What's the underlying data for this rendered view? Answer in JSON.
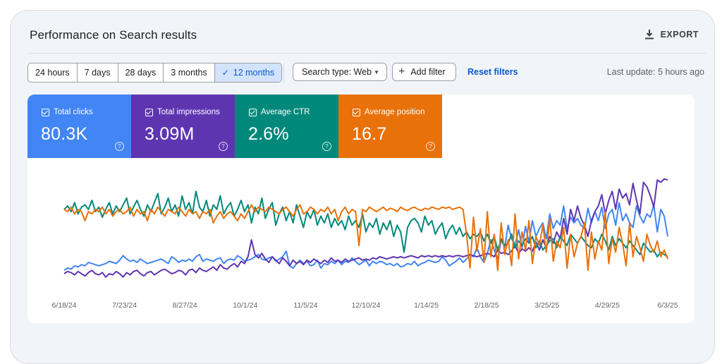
{
  "header": {
    "title": "Performance on Search results",
    "export_label": "EXPORT"
  },
  "toolbar": {
    "ranges": [
      "24 hours",
      "7 days",
      "28 days",
      "3 months",
      "12 months"
    ],
    "active_range": "12 months",
    "search_type_label": "Search type: Web",
    "add_filter_label": "Add filter",
    "reset_label": "Reset filters",
    "last_update": "Last update: 5 hours ago"
  },
  "metrics": [
    {
      "label": "Total clicks",
      "value": "80.3K",
      "color": "#4285f4",
      "checked": true
    },
    {
      "label": "Total impressions",
      "value": "3.09M",
      "color": "#5e35b1",
      "checked": true
    },
    {
      "label": "Average CTR",
      "value": "2.6%",
      "color": "#00897b",
      "checked": true
    },
    {
      "label": "Average position",
      "value": "16.7",
      "color": "#e8710a",
      "checked": true
    }
  ],
  "chart_data": {
    "type": "line",
    "x_ticks": [
      "6/18/24",
      "7/23/24",
      "8/27/24",
      "10/1/24",
      "11/5/24",
      "12/10/24",
      "1/14/25",
      "2/18/25",
      "3/25/25",
      "4/29/25",
      "6/3/25"
    ],
    "y_axis": "hidden",
    "grid": false,
    "normalized_scale": [
      0,
      100
    ],
    "series": [
      {
        "name": "Total clicks",
        "color": "#4285f4",
        "values": [
          18,
          20,
          19,
          22,
          21,
          23,
          22,
          25,
          24,
          23,
          22,
          23,
          24,
          26,
          25,
          24,
          27,
          31,
          28,
          26,
          27,
          25,
          28,
          26,
          24,
          25,
          26,
          27,
          28,
          26,
          24,
          30,
          28,
          25,
          27,
          26,
          28,
          26,
          30,
          32,
          26,
          28,
          27,
          26,
          28,
          29,
          24,
          27,
          28,
          27,
          31,
          29,
          26,
          27,
          28,
          30,
          32,
          28,
          27,
          29,
          30,
          26,
          28,
          30,
          35,
          22,
          20,
          24,
          27,
          24,
          26,
          22,
          23,
          27,
          20,
          24,
          23,
          26,
          24,
          27,
          23,
          26,
          25,
          29,
          26,
          23,
          25,
          27,
          22,
          26,
          24,
          26,
          25,
          23,
          24,
          22,
          24,
          21,
          22,
          24,
          23,
          26,
          22,
          24,
          25,
          27,
          26,
          25,
          26,
          30,
          27,
          22,
          24,
          26,
          29,
          25,
          28,
          32,
          30,
          38,
          30,
          25,
          33,
          45,
          36,
          28,
          45,
          38,
          58,
          46,
          40,
          54,
          38,
          57,
          43,
          62,
          48,
          55,
          60,
          46,
          68,
          55,
          62,
          58,
          75,
          55,
          65,
          60,
          64,
          58,
          55,
          73,
          60,
          70,
          62,
          74,
          55,
          68,
          72,
          58,
          78,
          62,
          68,
          60,
          56,
          75,
          66,
          60,
          68,
          65,
          76,
          52,
          72,
          66,
          48
        ]
      },
      {
        "name": "Total impressions",
        "color": "#5e35b1",
        "values": [
          15,
          17,
          16,
          14,
          17,
          15,
          13,
          16,
          18,
          15,
          14,
          16,
          12,
          15,
          14,
          17,
          15,
          12,
          16,
          14,
          17,
          18,
          15,
          13,
          16,
          17,
          14,
          16,
          18,
          19,
          17,
          15,
          16,
          18,
          17,
          14,
          18,
          19,
          16,
          20,
          18,
          17,
          19,
          21,
          18,
          23,
          20,
          19,
          22,
          24,
          21,
          26,
          24,
          30,
          45,
          32,
          29,
          33,
          28,
          25,
          30,
          27,
          24,
          29,
          26,
          22,
          27,
          24,
          26,
          23,
          27,
          25,
          28,
          26,
          24,
          27,
          25,
          29,
          26,
          27,
          25,
          28,
          26,
          27,
          28,
          29,
          27,
          28,
          27,
          29,
          28,
          30,
          29,
          28,
          29,
          30,
          29,
          30,
          29,
          30,
          31,
          30,
          29,
          31,
          30,
          31,
          30,
          31,
          30,
          31,
          30,
          31,
          30,
          31,
          31,
          30,
          31,
          32,
          31,
          30,
          31,
          32,
          33,
          32,
          30,
          36,
          33,
          34,
          32,
          35,
          40,
          33,
          37,
          35,
          38,
          35,
          43,
          36,
          45,
          38,
          48,
          42,
          52,
          46,
          64,
          50,
          72,
          62,
          75,
          64,
          58,
          48,
          62,
          70,
          75,
          85,
          68,
          80,
          88,
          72,
          90,
          82,
          86,
          76,
          95,
          80,
          68,
          96,
          92,
          84,
          74,
          98,
          96,
          99,
          98
        ]
      },
      {
        "name": "Average CTR",
        "color": "#00897b",
        "values": [
          72,
          75,
          70,
          78,
          68,
          74,
          76,
          72,
          80,
          70,
          74,
          65,
          72,
          78,
          68,
          75,
          70,
          76,
          82,
          68,
          74,
          80,
          72,
          66,
          76,
          70,
          78,
          86,
          68,
          74,
          82,
          70,
          76,
          66,
          84,
          72,
          78,
          68,
          88,
          74,
          70,
          80,
          66,
          76,
          72,
          84,
          68,
          74,
          78,
          66,
          72,
          80,
          70,
          76,
          60,
          74,
          68,
          82,
          64,
          72,
          78,
          58,
          68,
          74,
          62,
          70,
          60,
          76,
          66,
          56,
          70,
          64,
          72,
          58,
          66,
          60,
          68,
          56,
          64,
          58,
          62,
          54,
          66,
          58,
          62,
          56,
          68,
          52,
          60,
          56,
          64,
          50,
          60,
          54,
          62,
          48,
          58,
          52,
          34,
          56,
          62,
          64,
          60,
          52,
          66,
          58,
          62,
          50,
          56,
          60,
          46,
          54,
          58,
          50,
          56,
          48,
          52,
          46,
          50,
          48,
          52,
          44,
          50,
          42,
          48,
          36,
          46,
          40,
          42,
          50,
          38,
          44,
          40,
          46,
          42,
          48,
          38,
          44,
          36,
          40,
          44,
          46,
          38,
          48,
          44,
          40,
          50,
          46,
          42,
          48,
          44,
          40,
          38,
          46,
          42,
          50,
          44,
          36,
          48,
          40,
          46,
          42,
          38,
          44,
          40,
          36,
          32,
          42,
          38,
          34,
          36,
          30,
          34,
          32,
          30
        ]
      },
      {
        "name": "Average position",
        "color": "#e8710a",
        "values": [
          72,
          70,
          74,
          68,
          72,
          70,
          62,
          70,
          68,
          72,
          70,
          74,
          68,
          72,
          66,
          70,
          72,
          68,
          70,
          74,
          66,
          72,
          68,
          70,
          62,
          72,
          68,
          74,
          70,
          66,
          72,
          70,
          68,
          74,
          70,
          66,
          72,
          68,
          70,
          64,
          70,
          68,
          72,
          60,
          66,
          70,
          64,
          68,
          70,
          66,
          62,
          68,
          64,
          70,
          76,
          70,
          74,
          72,
          70,
          74,
          72,
          70,
          68,
          72,
          74,
          70,
          66,
          72,
          76,
          68,
          70,
          74,
          72,
          68,
          72,
          70,
          74,
          68,
          72,
          62,
          70,
          74,
          68,
          72,
          70,
          40,
          72,
          70,
          74,
          72,
          70,
          72,
          74,
          71,
          73,
          72,
          70,
          74,
          72,
          71,
          73,
          74,
          72,
          71,
          73,
          72,
          74,
          73,
          72,
          74,
          73,
          74,
          72,
          73,
          74,
          72,
          50,
          20,
          65,
          35,
          55,
          25,
          70,
          30,
          50,
          18,
          60,
          32,
          45,
          22,
          68,
          28,
          52,
          36,
          62,
          24,
          48,
          40,
          58,
          34,
          64,
          26,
          44,
          38,
          56,
          20,
          50,
          30,
          42,
          48,
          60,
          18,
          52,
          28,
          44,
          36,
          70,
          24,
          46,
          34,
          56,
          42,
          22,
          60,
          30,
          48,
          38,
          26,
          50,
          40,
          34,
          44,
          30,
          36,
          28
        ]
      }
    ]
  }
}
